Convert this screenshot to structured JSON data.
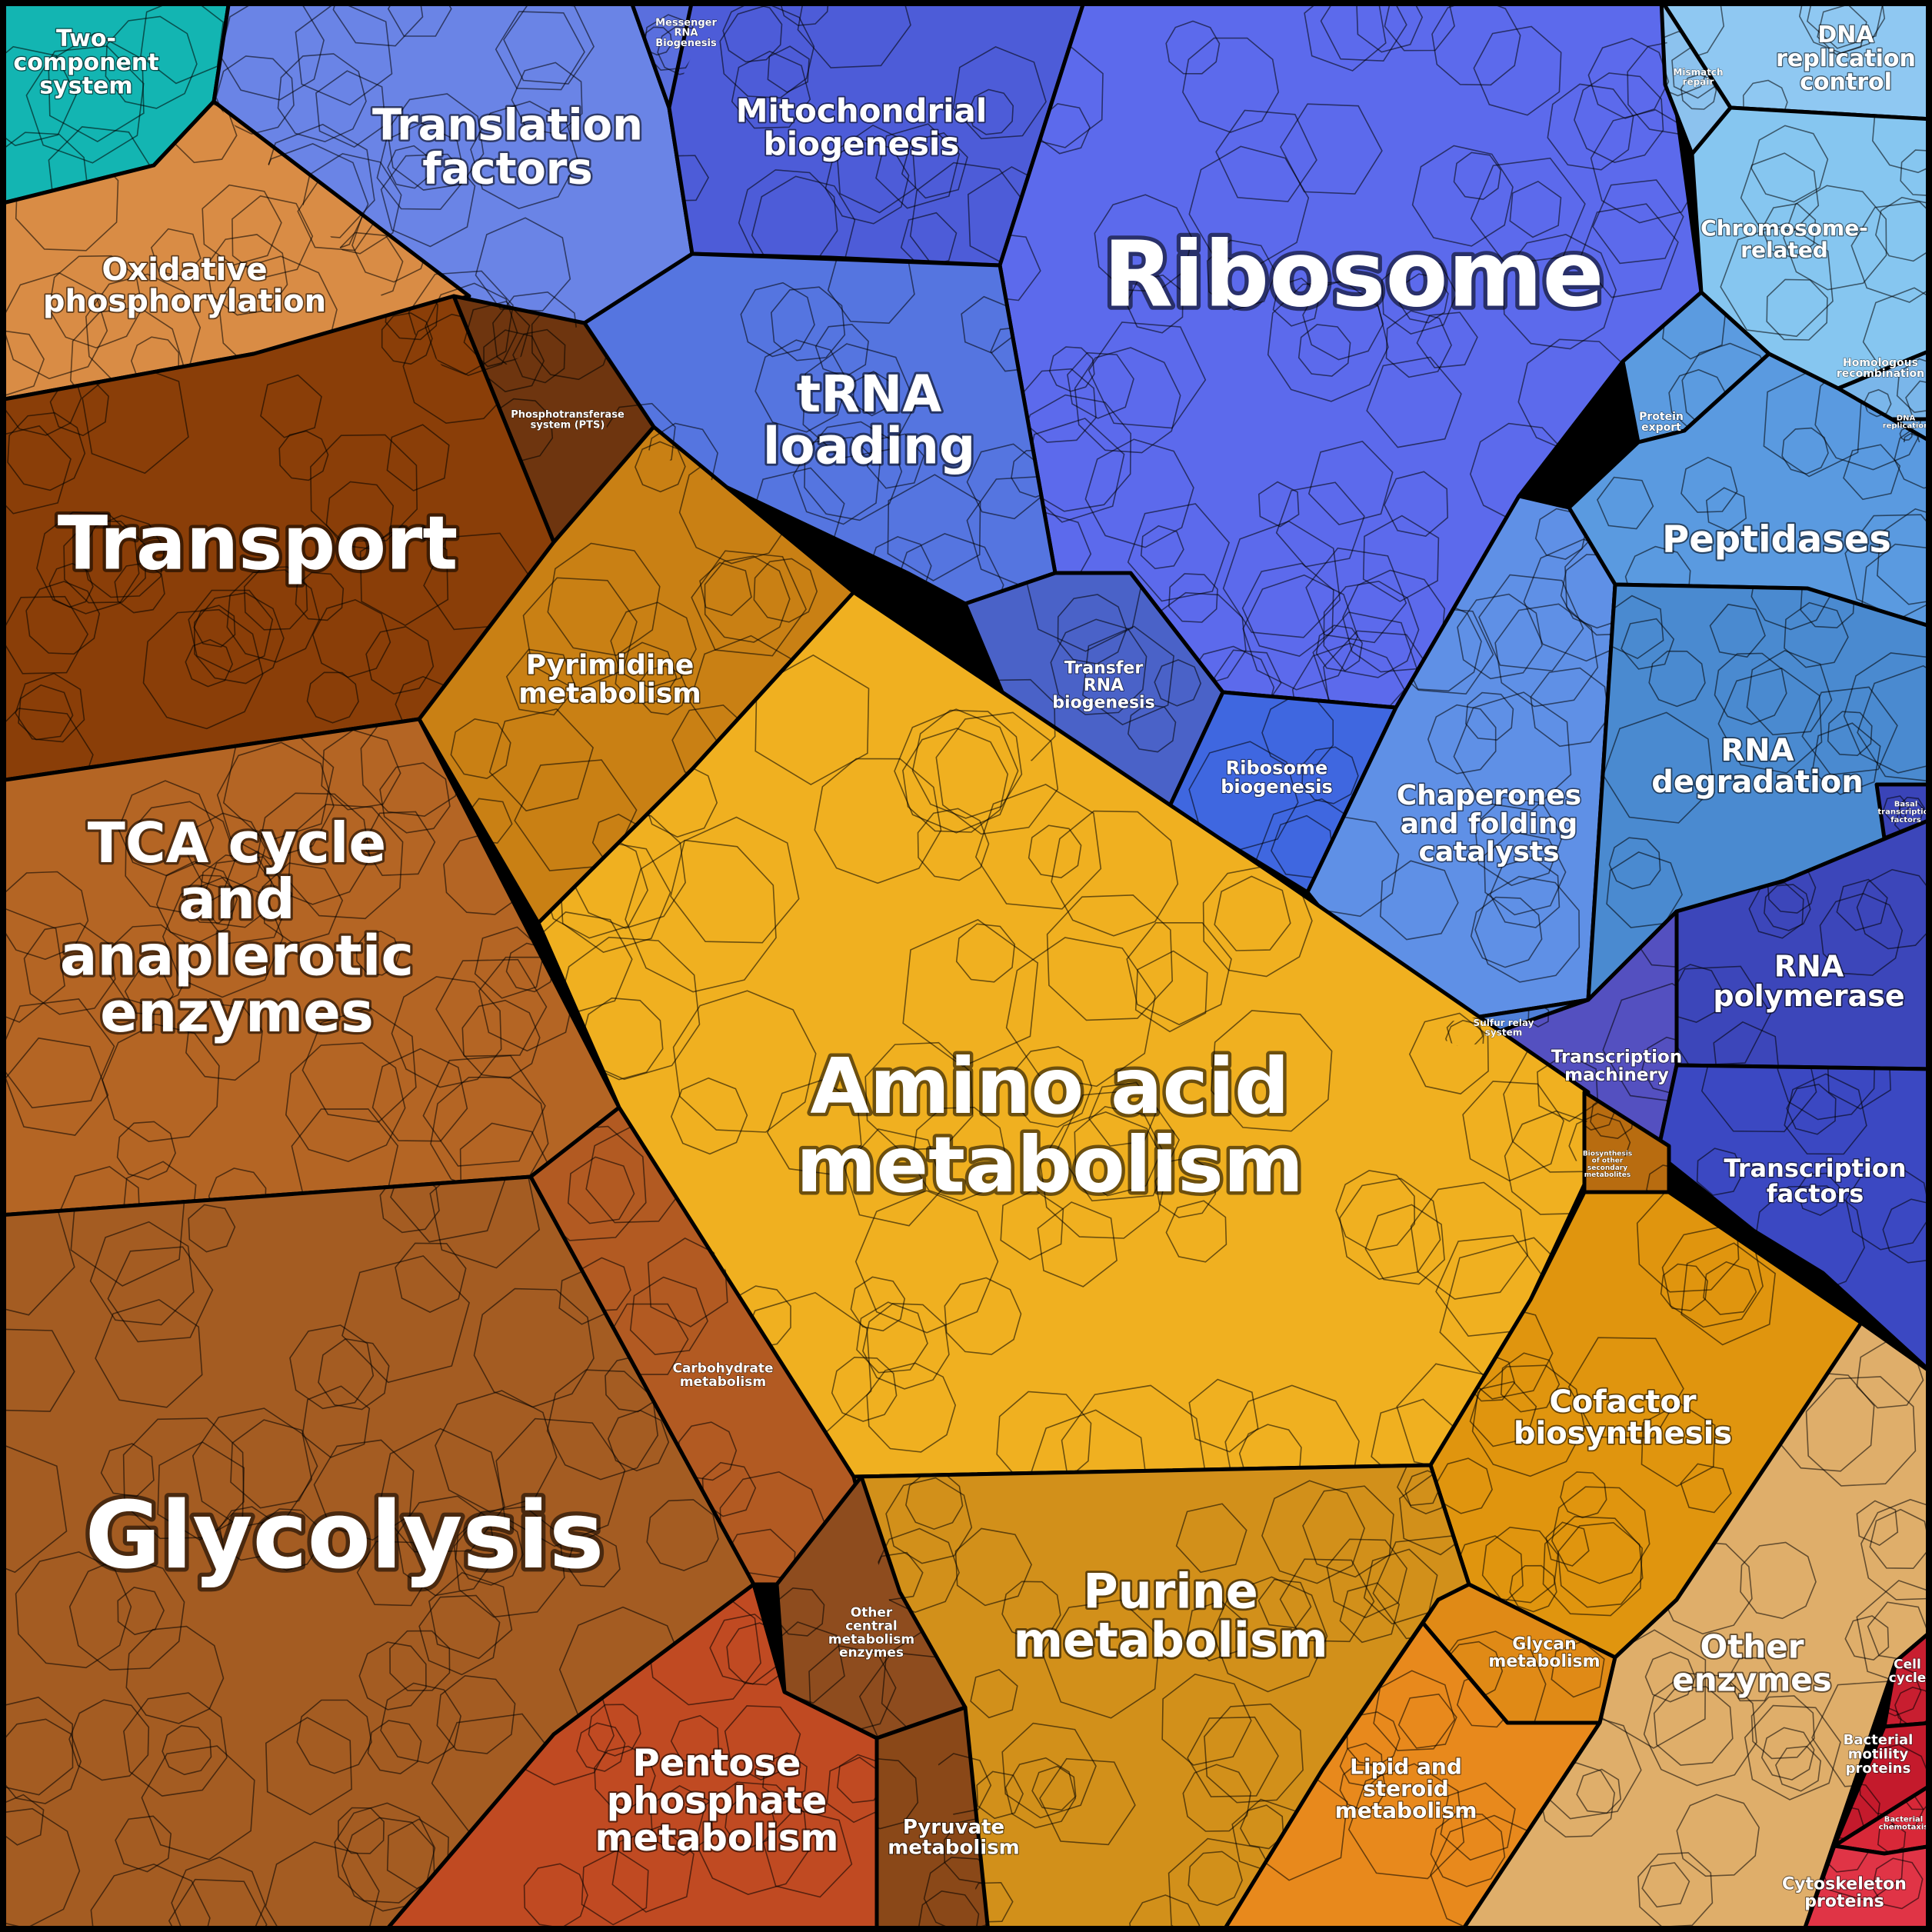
{
  "colors": {
    "background": "#000000",
    "label_text": "#ffffff"
  },
  "regions": [
    {
      "id": "two-component-system",
      "label": [
        "Two-",
        "component",
        "system"
      ],
      "color": "#13b5b2"
    },
    {
      "id": "translation-factors",
      "label": [
        "Translation",
        "factors"
      ],
      "color": "#6a84e6"
    },
    {
      "id": "messenger-rna-biogenesis",
      "label": [
        "Messenger",
        "RNA",
        "Biogenesis"
      ],
      "color": "#5a6fde"
    },
    {
      "id": "mitochondrial-biogenesis",
      "label": [
        "Mitochondrial",
        "biogenesis"
      ],
      "color": "#4d5cd8"
    },
    {
      "id": "ribosome",
      "label": [
        "Ribosome"
      ],
      "color": "#5c6aec"
    },
    {
      "id": "trna-loading",
      "label": [
        "tRNA",
        "loading"
      ],
      "color": "#5575e0"
    },
    {
      "id": "transfer-rna-biogenesis",
      "label": [
        "Transfer",
        "RNA",
        "biogenesis"
      ],
      "color": "#4a62c8"
    },
    {
      "id": "ribosome-biogenesis",
      "label": [
        "Ribosome",
        "biogenesis"
      ],
      "color": "#3f67e0"
    },
    {
      "id": "dna-replication-control",
      "label": [
        "DNA",
        "replication",
        "control"
      ],
      "color": "#8fc8f2"
    },
    {
      "id": "chromosome-related",
      "label": [
        "Chromosome-",
        "related"
      ],
      "color": "#86c6f0"
    },
    {
      "id": "homologous-recombination",
      "label": [
        "Homologous",
        "recombination"
      ],
      "color": "#7ab6ea"
    },
    {
      "id": "mismatch-repair",
      "label": [
        "Mismatch",
        "repair"
      ],
      "color": "#8cc2ee"
    },
    {
      "id": "dna-replication",
      "label": [
        "DNA",
        "replication"
      ],
      "color": "#6aa7e4"
    },
    {
      "id": "protein-export",
      "label": [
        "Protein",
        "export"
      ],
      "color": "#5b9be0"
    },
    {
      "id": "peptidases",
      "label": [
        "Peptidases"
      ],
      "color": "#5a9ae0"
    },
    {
      "id": "chaperones",
      "label": [
        "Chaperones",
        "and folding",
        "catalysts"
      ],
      "color": "#5f90e6"
    },
    {
      "id": "sulfur-relay-system",
      "label": [
        "Sulfur relay",
        "system"
      ],
      "color": "#4f7fd8"
    },
    {
      "id": "rna-degradation",
      "label": [
        "RNA",
        "degradation"
      ],
      "color": "#4a8ad0"
    },
    {
      "id": "basal-transcription-factors",
      "label": [
        "Basal",
        "transcription",
        "factors"
      ],
      "color": "#3a44b8"
    },
    {
      "id": "rna-polymerase",
      "label": [
        "RNA",
        "polymerase"
      ],
      "color": "#3c46ba"
    },
    {
      "id": "transcription-machinery",
      "label": [
        "Transcription",
        "machinery"
      ],
      "color": "#5450c0"
    },
    {
      "id": "transcription-factors",
      "label": [
        "Transcription",
        "factors"
      ],
      "color": "#3b48c2"
    },
    {
      "id": "oxidative-phosphorylation",
      "label": [
        "Oxidative",
        "phosphorylation"
      ],
      "color": "#d98c45"
    },
    {
      "id": "phosphotransferase-system",
      "label": [
        "Phosphotransferase",
        "system (PTS)"
      ],
      "color": "#6e350f"
    },
    {
      "id": "transport",
      "label": [
        "Transport"
      ],
      "color": "#8a3e08"
    },
    {
      "id": "pyrimidine-metabolism",
      "label": [
        "Pyrimidine",
        "metabolism"
      ],
      "color": "#c98014"
    },
    {
      "id": "tca-cycle",
      "label": [
        "TCA cycle",
        "and",
        "anaplerotic",
        "enzymes"
      ],
      "color": "#b46524"
    },
    {
      "id": "glycolysis",
      "label": [
        "Glycolysis"
      ],
      "color": "#a45c22"
    },
    {
      "id": "carbohydrate-metabolism",
      "label": [
        "Carbohydrate",
        "metabolism"
      ],
      "color": "#b25a22"
    },
    {
      "id": "amino-acid-metabolism",
      "label": [
        "Amino acid",
        "metabolism"
      ],
      "color": "#f0b020"
    },
    {
      "id": "biosynthesis-of-other-secondary-metabolites",
      "label": [
        "Biosynthesis",
        "of other",
        "secondary",
        "metabolites"
      ],
      "color": "#b86c10"
    },
    {
      "id": "cofactor-biosynthesis",
      "label": [
        "Cofactor",
        "biosynthesis"
      ],
      "color": "#e0950e"
    },
    {
      "id": "purine-metabolism",
      "label": [
        "Purine",
        "metabolism"
      ],
      "color": "#d2901a"
    },
    {
      "id": "glycan-metabolism",
      "label": [
        "Glycan",
        "metabolism"
      ],
      "color": "#e08a16"
    },
    {
      "id": "lipid-and-steroid-metabolism",
      "label": [
        "Lipid and",
        "steroid",
        "metabolism"
      ],
      "color": "#e8891c"
    },
    {
      "id": "other-central-metabolism-enzymes",
      "label": [
        "Other",
        "central",
        "metabolism",
        "enzymes"
      ],
      "color": "#8e4c1e"
    },
    {
      "id": "pentose-phosphate-metabolism",
      "label": [
        "Pentose",
        "phosphate",
        "metabolism"
      ],
      "color": "#c04a22"
    },
    {
      "id": "pyruvate-metabolism",
      "label": [
        "Pyruvate",
        "metabolism"
      ],
      "color": "#8a4818"
    },
    {
      "id": "other-enzymes",
      "label": [
        "Other",
        "enzymes"
      ],
      "color": "#dfae6a"
    },
    {
      "id": "cell-cycle",
      "label": [
        "Cell",
        "cycle"
      ],
      "color": "#c81e30"
    },
    {
      "id": "bacterial-motility-proteins",
      "label": [
        "Bacterial",
        "motility",
        "proteins"
      ],
      "color": "#c41a2c"
    },
    {
      "id": "bacterial-chemotaxis",
      "label": [
        "Bacterial",
        "chemotaxis"
      ],
      "color": "#d82838"
    },
    {
      "id": "cytoskeleton-proteins",
      "label": [
        "Cytoskeleton",
        "proteins"
      ],
      "color": "#e03446"
    }
  ]
}
